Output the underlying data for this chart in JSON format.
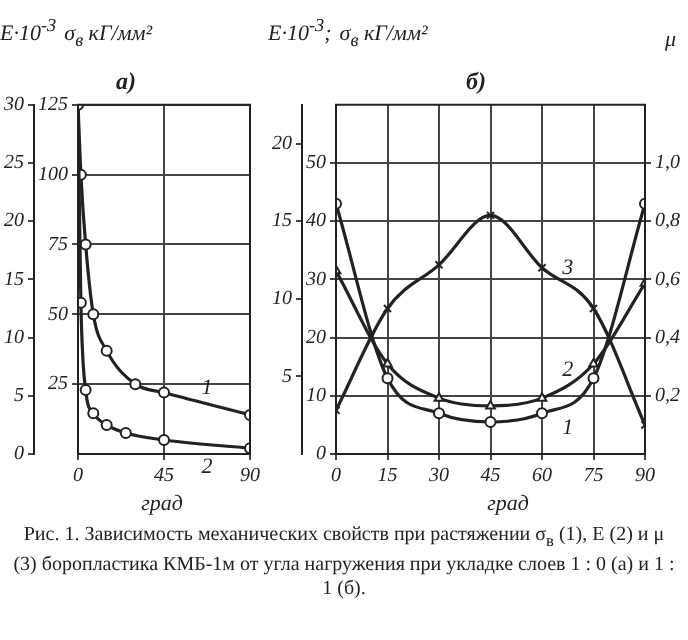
{
  "chart_data": [
    {
      "type": "line",
      "title": "а)",
      "ylabel": "E·10$^{-3}$",
      "y2label": "σ$_{в}$ кГ/мм²",
      "xlabel": "град",
      "xlim": [
        0,
        90
      ],
      "xticks": [
        0,
        45,
        90
      ],
      "ylim": [
        0,
        30
      ],
      "yticks": [
        0,
        5,
        10,
        15,
        20,
        25,
        30
      ],
      "y2lim": [
        0,
        125
      ],
      "y2ticks": [
        25,
        50,
        75,
        100,
        125
      ],
      "grid": true,
      "marker": "circle",
      "series": [
        {
          "name": "1",
          "color": "#222222",
          "axis": "y2",
          "x": [
            0,
            1.5,
            4,
            8,
            15,
            30,
            45,
            90
          ],
          "values": [
            125,
            100,
            75,
            50,
            37,
            25,
            22,
            14
          ]
        },
        {
          "name": "2",
          "color": "#222222",
          "axis": "y",
          "x": [
            0,
            1.5,
            4,
            8,
            15,
            25,
            45,
            90
          ],
          "values": [
            30,
            13,
            5.5,
            3.5,
            2.5,
            1.8,
            1.2,
            0.5
          ]
        }
      ],
      "annotations": [
        "Рис. 1. Зависимость механических свойств при растяжении σ$_{в}$ (1), E (2) и μ (3) боропластика КМБ-1м от угла нагружения при укладке слоев 1 : 0 (а) и 1 : 1 (б)."
      ]
    },
    {
      "type": "line",
      "title": "б)",
      "y3label": "E·10$^{-3}$;",
      "ylabel": "σ$_{в}$ кГ/мм²",
      "y2label": "μ",
      "xlabel": "град",
      "xlim": [
        0,
        90
      ],
      "xticks": [
        0,
        15,
        30,
        45,
        60,
        75,
        90
      ],
      "y3lim": [
        0,
        22.5
      ],
      "y3ticks": [
        5,
        10,
        15,
        20
      ],
      "ylim": [
        0,
        60
      ],
      "yticks": [
        0,
        10,
        20,
        30,
        40,
        50
      ],
      "y2lim": [
        0,
        1.2
      ],
      "y2ticks": [
        {
          "value": 0.2,
          "label": "0,2"
        },
        {
          "value": 0.4,
          "label": "0,4"
        },
        {
          "value": 0.6,
          "label": "0,6"
        },
        {
          "value": 0.8,
          "label": "0,8"
        },
        {
          "value": 1.0,
          "label": "1,0"
        }
      ],
      "grid": true,
      "series": [
        {
          "name": "1",
          "color": "#222222",
          "axis": "y",
          "marker": "circle",
          "x": [
            0,
            15,
            30,
            45,
            60,
            75,
            90
          ],
          "values": [
            43,
            13,
            7,
            5.5,
            7,
            13,
            43
          ]
        },
        {
          "name": "2",
          "color": "#222222",
          "axis": "y3",
          "marker": "triangle",
          "x": [
            0,
            15,
            30,
            45,
            60,
            75,
            90
          ],
          "values": [
            11.8,
            5.8,
            3.6,
            3.1,
            3.6,
            5.8,
            11
          ]
        },
        {
          "name": "3",
          "color": "#222222",
          "axis": "y2",
          "marker": "cross",
          "x": [
            0,
            15,
            30,
            45,
            60,
            75,
            90
          ],
          "values": [
            0.15,
            0.5,
            0.65,
            0.82,
            0.64,
            0.5,
            0.1
          ]
        }
      ]
    }
  ]
}
